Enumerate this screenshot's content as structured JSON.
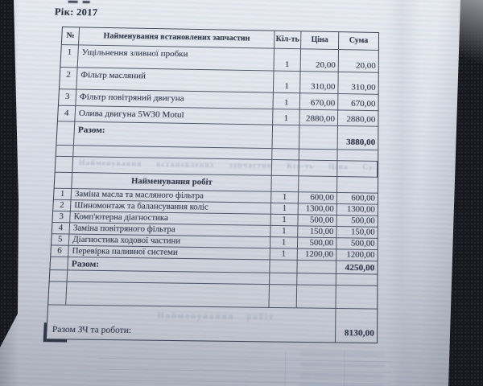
{
  "document": {
    "year_line": "Рік: 2017"
  },
  "parts_table": {
    "headers": [
      "№",
      "Найменування встановлених запчастин",
      "Кіл-ть",
      "Ціна",
      "Сума"
    ],
    "rows": [
      {
        "num": "1",
        "name": "Ущільнення зливної пробки",
        "qty": "1",
        "price": "20,00",
        "sum": "20,00"
      },
      {
        "num": "2",
        "name": "Фільтр масляний",
        "qty": "1",
        "price": "310,00",
        "sum": "310,00"
      },
      {
        "num": "3",
        "name": "Фільтр повітряний двигуна",
        "qty": "1",
        "price": "670,00",
        "sum": "670,00"
      },
      {
        "num": "4",
        "name": "Олива двигуна  5W30 Motul",
        "qty": "1",
        "price": "2880,00",
        "sum": "2880,00"
      }
    ],
    "total_label": "Разом:",
    "total": "3880,00"
  },
  "works_table": {
    "section_header": "Найменування робіт",
    "rows": [
      {
        "num": "1",
        "name": "Заміна масла та масляного фільтра",
        "qty": "1",
        "price": "600,00",
        "sum": "600,00"
      },
      {
        "num": "2",
        "name": "Шиномонтаж та балансування коліс",
        "qty": "1",
        "price": "1300,00",
        "sum": "1300,00"
      },
      {
        "num": "3",
        "name": "Комп'ютерна діагностика",
        "qty": "1",
        "price": "500,00",
        "sum": "500,00"
      },
      {
        "num": "4",
        "name": "Заміна повітряного фільтра",
        "qty": "1",
        "price": "150,00",
        "sum": "150,00"
      },
      {
        "num": "5",
        "name": "Діагностика ходової частини",
        "qty": "1",
        "price": "500,00",
        "sum": "500,00"
      },
      {
        "num": "6",
        "name": "Перевірка паливної системи",
        "qty": "1",
        "price": "1200,00",
        "sum": "1200,00"
      }
    ],
    "total_label": "Разом:",
    "total": "4250,00"
  },
  "grand_total": {
    "label": "Разом ЗЧ та роботи:",
    "value": "8130,00"
  },
  "bleedthrough": {
    "header_echo": "Найменування встановлених запчастин Кіл-ть Ціна Сума",
    "works_echo": "Найменування робіт"
  },
  "colors": {
    "paper": "#dde1ea",
    "ink": "#2e3547",
    "table_border": "#4e5668",
    "background": "#17181d"
  }
}
